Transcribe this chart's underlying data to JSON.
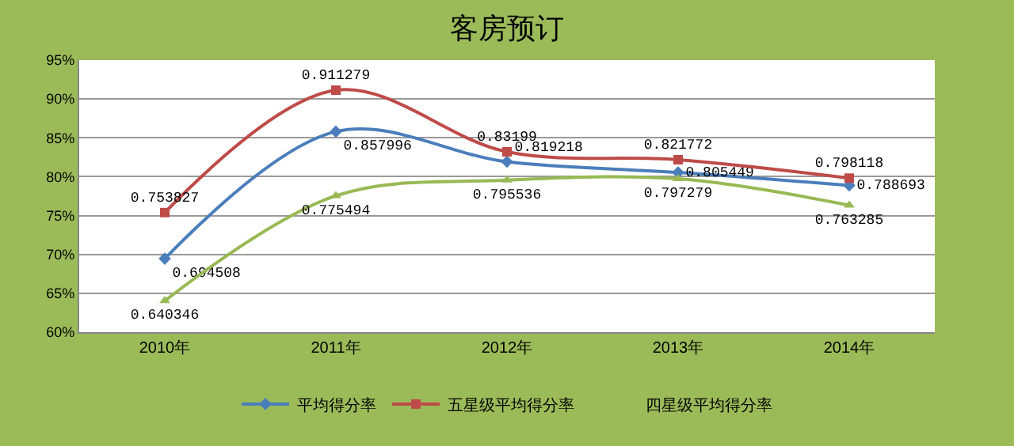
{
  "chart_data": {
    "type": "line",
    "title": "客房预订",
    "categories": [
      "2010年",
      "2011年",
      "2012年",
      "2013年",
      "2014年"
    ],
    "series": [
      {
        "name": "平均得分率",
        "color": "#4a7ebb",
        "marker": "diamond",
        "values": [
          0.694508,
          0.857996,
          0.819218,
          0.805449,
          0.788693
        ]
      },
      {
        "name": "五星级平均得分率",
        "color": "#be4b48",
        "marker": "square",
        "values": [
          0.753827,
          0.911279,
          0.83199,
          0.821772,
          0.798118
        ]
      },
      {
        "name": "四星级平均得分率",
        "color": "#98b954",
        "marker": "triangle",
        "values": [
          0.640346,
          0.775494,
          0.795536,
          0.797279,
          0.763285
        ]
      }
    ],
    "ylim": [
      0.6,
      0.95
    ],
    "yticks": [
      {
        "value": 0.6,
        "label": "60%"
      },
      {
        "value": 0.65,
        "label": "65%"
      },
      {
        "value": 0.7,
        "label": "70%"
      },
      {
        "value": 0.75,
        "label": "75%"
      },
      {
        "value": 0.8,
        "label": "80%"
      },
      {
        "value": 0.85,
        "label": "85%"
      },
      {
        "value": 0.9,
        "label": "90%"
      },
      {
        "value": 0.95,
        "label": "95%"
      }
    ],
    "grid": "y",
    "legend": "bottom",
    "data_labels": true
  }
}
